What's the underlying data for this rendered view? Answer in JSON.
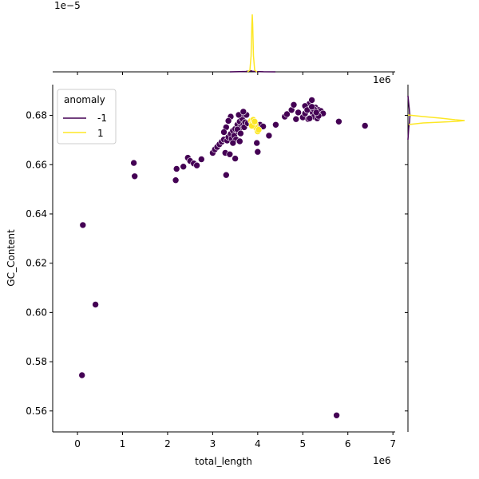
{
  "chart_data": {
    "type": "scatter",
    "title": "",
    "xlabel": "total_length",
    "ylabel": "GC_Content",
    "x_offset_label": "1e6",
    "marginal_y_offset_label": "1e−5",
    "marginal_x_offset_label": "1e6",
    "xlim": [
      -0.55,
      7.05
    ],
    "ylim": [
      0.5515,
      0.6925
    ],
    "xticks": [
      0,
      1,
      2,
      3,
      4,
      5,
      6,
      7
    ],
    "xtick_labels": [
      "0",
      "1",
      "2",
      "3",
      "4",
      "5",
      "6",
      "7"
    ],
    "yticks": [
      0.56,
      0.58,
      0.6,
      0.62,
      0.64,
      0.66,
      0.68
    ],
    "ytick_labels": [
      "0.56",
      "0.58",
      "0.60",
      "0.62",
      "0.64",
      "0.66",
      "0.68"
    ],
    "grid": false,
    "legend": {
      "title": "anomaly",
      "placement": "top-left",
      "entries": [
        {
          "label": "-1",
          "color": "#440154"
        },
        {
          "label": "1",
          "color": "#fde725"
        }
      ]
    },
    "series": [
      {
        "name": "-1",
        "color": "#440154",
        "x": [
          0.12,
          0.1,
          0.4,
          1.25,
          1.27,
          2.18,
          2.2,
          2.35,
          2.45,
          2.5,
          2.58,
          2.65,
          2.75,
          3.0,
          3.05,
          3.1,
          3.15,
          3.2,
          3.25,
          3.28,
          3.3,
          3.32,
          3.35,
          3.38,
          3.4,
          3.42,
          3.45,
          3.48,
          3.5,
          3.52,
          3.55,
          3.58,
          3.6,
          3.62,
          3.65,
          3.68,
          3.7,
          3.72,
          3.75,
          3.4,
          3.3,
          3.6,
          3.5,
          3.55,
          3.35,
          3.45,
          3.62,
          3.7,
          3.25,
          3.58,
          3.68,
          3.78,
          3.98,
          4.0,
          4.05,
          4.12,
          4.25,
          4.4,
          4.6,
          4.65,
          4.75,
          4.8,
          4.85,
          4.9,
          5.0,
          5.05,
          5.08,
          5.1,
          5.12,
          5.15,
          5.18,
          5.2,
          5.22,
          5.25,
          5.28,
          5.3,
          5.32,
          5.35,
          5.38,
          5.4,
          5.45,
          5.05,
          5.15,
          5.25,
          5.35,
          5.1,
          5.2,
          5.3,
          5.8,
          6.38,
          5.75
        ],
        "y": [
          0.6355,
          0.5745,
          0.6032,
          0.6607,
          0.6553,
          0.6537,
          0.6583,
          0.6592,
          0.6628,
          0.6615,
          0.6605,
          0.6597,
          0.6622,
          0.6648,
          0.6662,
          0.6672,
          0.6683,
          0.6693,
          0.6702,
          0.6648,
          0.6558,
          0.6698,
          0.6712,
          0.6642,
          0.6725,
          0.6705,
          0.6738,
          0.6718,
          0.6745,
          0.6702,
          0.6762,
          0.6732,
          0.6775,
          0.6752,
          0.6788,
          0.6762,
          0.6805,
          0.6772,
          0.6802,
          0.6795,
          0.6752,
          0.6695,
          0.6625,
          0.6743,
          0.6778,
          0.6688,
          0.6727,
          0.6752,
          0.6732,
          0.6802,
          0.6815,
          0.6768,
          0.6688,
          0.6652,
          0.6762,
          0.6755,
          0.6718,
          0.6762,
          0.6795,
          0.6805,
          0.6822,
          0.6843,
          0.6785,
          0.6812,
          0.6792,
          0.6808,
          0.6838,
          0.6822,
          0.6785,
          0.6848,
          0.6828,
          0.6862,
          0.6812,
          0.6795,
          0.6832,
          0.6815,
          0.6788,
          0.6822,
          0.6802,
          0.6818,
          0.6808,
          0.6838,
          0.6788,
          0.6825,
          0.6798,
          0.6822,
          0.6835,
          0.6812,
          0.6775,
          0.6758,
          0.5582
        ]
      },
      {
        "name": "1",
        "color": "#fde725",
        "x": [
          3.85,
          3.88,
          3.9,
          3.92,
          3.95,
          3.97,
          4.0,
          3.87,
          3.93,
          4.02
        ],
        "y": [
          0.6778,
          0.6768,
          0.6782,
          0.6772,
          0.6762,
          0.6748,
          0.6735,
          0.6758,
          0.6775,
          0.6742
        ]
      }
    ]
  }
}
